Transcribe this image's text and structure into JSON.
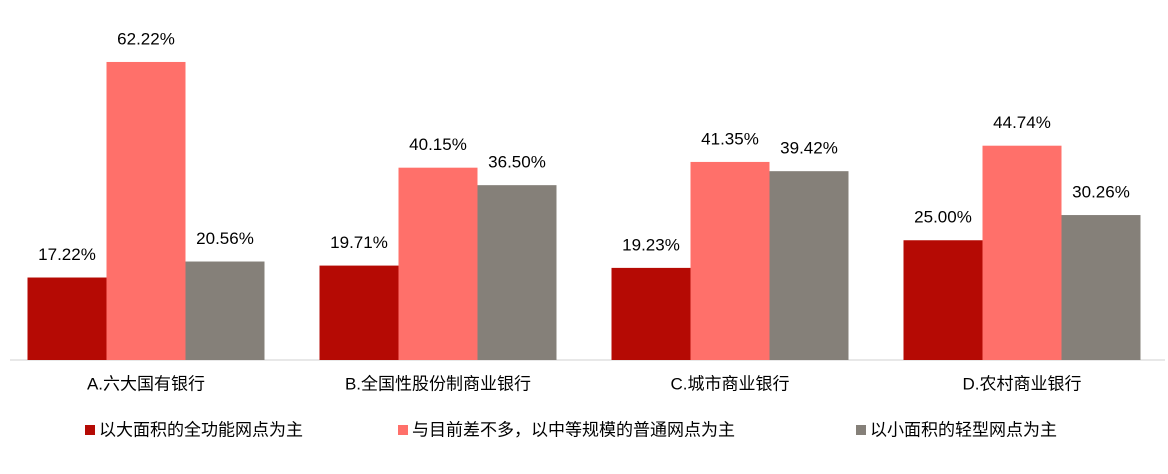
{
  "chart_data": {
    "type": "bar",
    "categories": [
      "A.六大国有银行",
      "B.全国性股份制商业银行",
      "C.城市商业银行",
      "D.农村商业银行"
    ],
    "series": [
      {
        "name": "以大面积的全功能网点为主",
        "color": "#b50a04",
        "values": [
          17.22,
          19.71,
          19.23,
          25.0
        ],
        "value_labels": [
          "17.22%",
          "19.71%",
          "19.23%",
          "25.00%"
        ]
      },
      {
        "name": "与目前差不多，以中等规模的普通网点为主",
        "color": "#ff706a",
        "values": [
          62.22,
          40.15,
          41.35,
          44.74
        ],
        "value_labels": [
          "62.22%",
          "40.15%",
          "41.35%",
          "44.74%"
        ]
      },
      {
        "name": "以小面积的轻型网点为主",
        "color": "#858079",
        "values": [
          20.56,
          36.5,
          39.42,
          30.26
        ],
        "value_labels": [
          "20.56%",
          "36.50%",
          "39.42%",
          "30.26%"
        ]
      }
    ]
  }
}
